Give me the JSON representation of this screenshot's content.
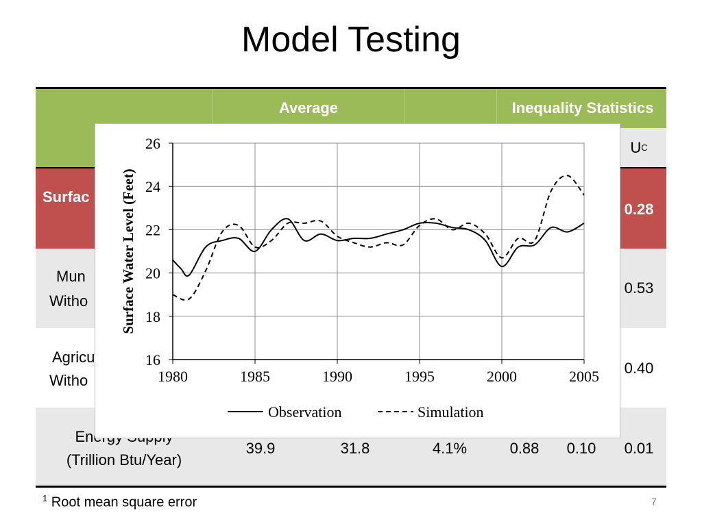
{
  "slide": {
    "title": "Model Testing",
    "footnote_mark": "1",
    "footnote_text": "Root mean square error",
    "page_number": "7"
  },
  "table": {
    "header": {
      "average": "Average",
      "inequality": "Inequality Statistics",
      "uc": "U",
      "uc_sup": "C"
    },
    "rows": [
      {
        "label_line1": "Surfac",
        "label_line2": "",
        "uc": "0.28",
        "bg": "#c0504d",
        "text_color": "#ffffff"
      },
      {
        "label_line1": "Mun",
        "label_line2": "Witho",
        "uc": "0.53",
        "bg": "#e8e8e8",
        "text_color": "#000000"
      },
      {
        "label_line1": "Agricu",
        "label_line2": "Witho",
        "uc": "0.40",
        "bg": "#ffffff",
        "text_color": "#000000"
      },
      {
        "label_line1": "Energy Supply",
        "label_line2": "(Trillion Btu/Year)",
        "obs": "39.9",
        "sim": "31.8",
        "rmse": "4.1%",
        "um": "0.88",
        "us": "0.10",
        "uc": "0.01",
        "bg": "#e8e8e8",
        "text_color": "#000000"
      }
    ],
    "colors": {
      "header_green": "#9bbb59"
    }
  },
  "chart_data": {
    "type": "line",
    "xlabel": "",
    "ylabel": "Surface Water Level (Feet)",
    "xlim": [
      1980,
      2005
    ],
    "ylim": [
      16,
      26
    ],
    "xticks": [
      "1980",
      "1985",
      "1990",
      "1995",
      "2000",
      "2005"
    ],
    "yticks": [
      "16",
      "18",
      "20",
      "22",
      "24",
      "26"
    ],
    "grid": true,
    "legend_position": "bottom",
    "series": [
      {
        "name": "Observation",
        "style": "solid",
        "x": [
          1980,
          1980.5,
          1981,
          1982,
          1983,
          1984,
          1985,
          1986,
          1987,
          1988,
          1989,
          1990,
          1991,
          1992,
          1993,
          1994,
          1995,
          1996,
          1997,
          1998,
          1999,
          2000,
          2001,
          2002,
          2003,
          2004,
          2005
        ],
        "values": [
          20.6,
          20.2,
          19.9,
          21.2,
          21.5,
          21.6,
          21.0,
          22.0,
          22.5,
          21.5,
          21.8,
          21.5,
          21.6,
          21.6,
          21.8,
          22.0,
          22.3,
          22.3,
          22.1,
          22.0,
          21.5,
          20.3,
          21.2,
          21.3,
          22.1,
          21.9,
          22.3
        ]
      },
      {
        "name": "Simulation",
        "style": "dashed",
        "x": [
          1980,
          1981,
          1982,
          1983,
          1984,
          1985,
          1986,
          1987,
          1988,
          1989,
          1990,
          1991,
          1992,
          1993,
          1994,
          1995,
          1996,
          1997,
          1998,
          1999,
          2000,
          2001,
          2002,
          2003,
          2004,
          2005
        ],
        "values": [
          19.0,
          18.8,
          20.1,
          21.9,
          22.2,
          21.2,
          21.5,
          22.3,
          22.3,
          22.4,
          21.7,
          21.4,
          21.2,
          21.4,
          21.3,
          22.2,
          22.5,
          22.0,
          22.3,
          21.8,
          20.7,
          21.6,
          21.5,
          23.8,
          24.5,
          23.6
        ]
      }
    ]
  }
}
